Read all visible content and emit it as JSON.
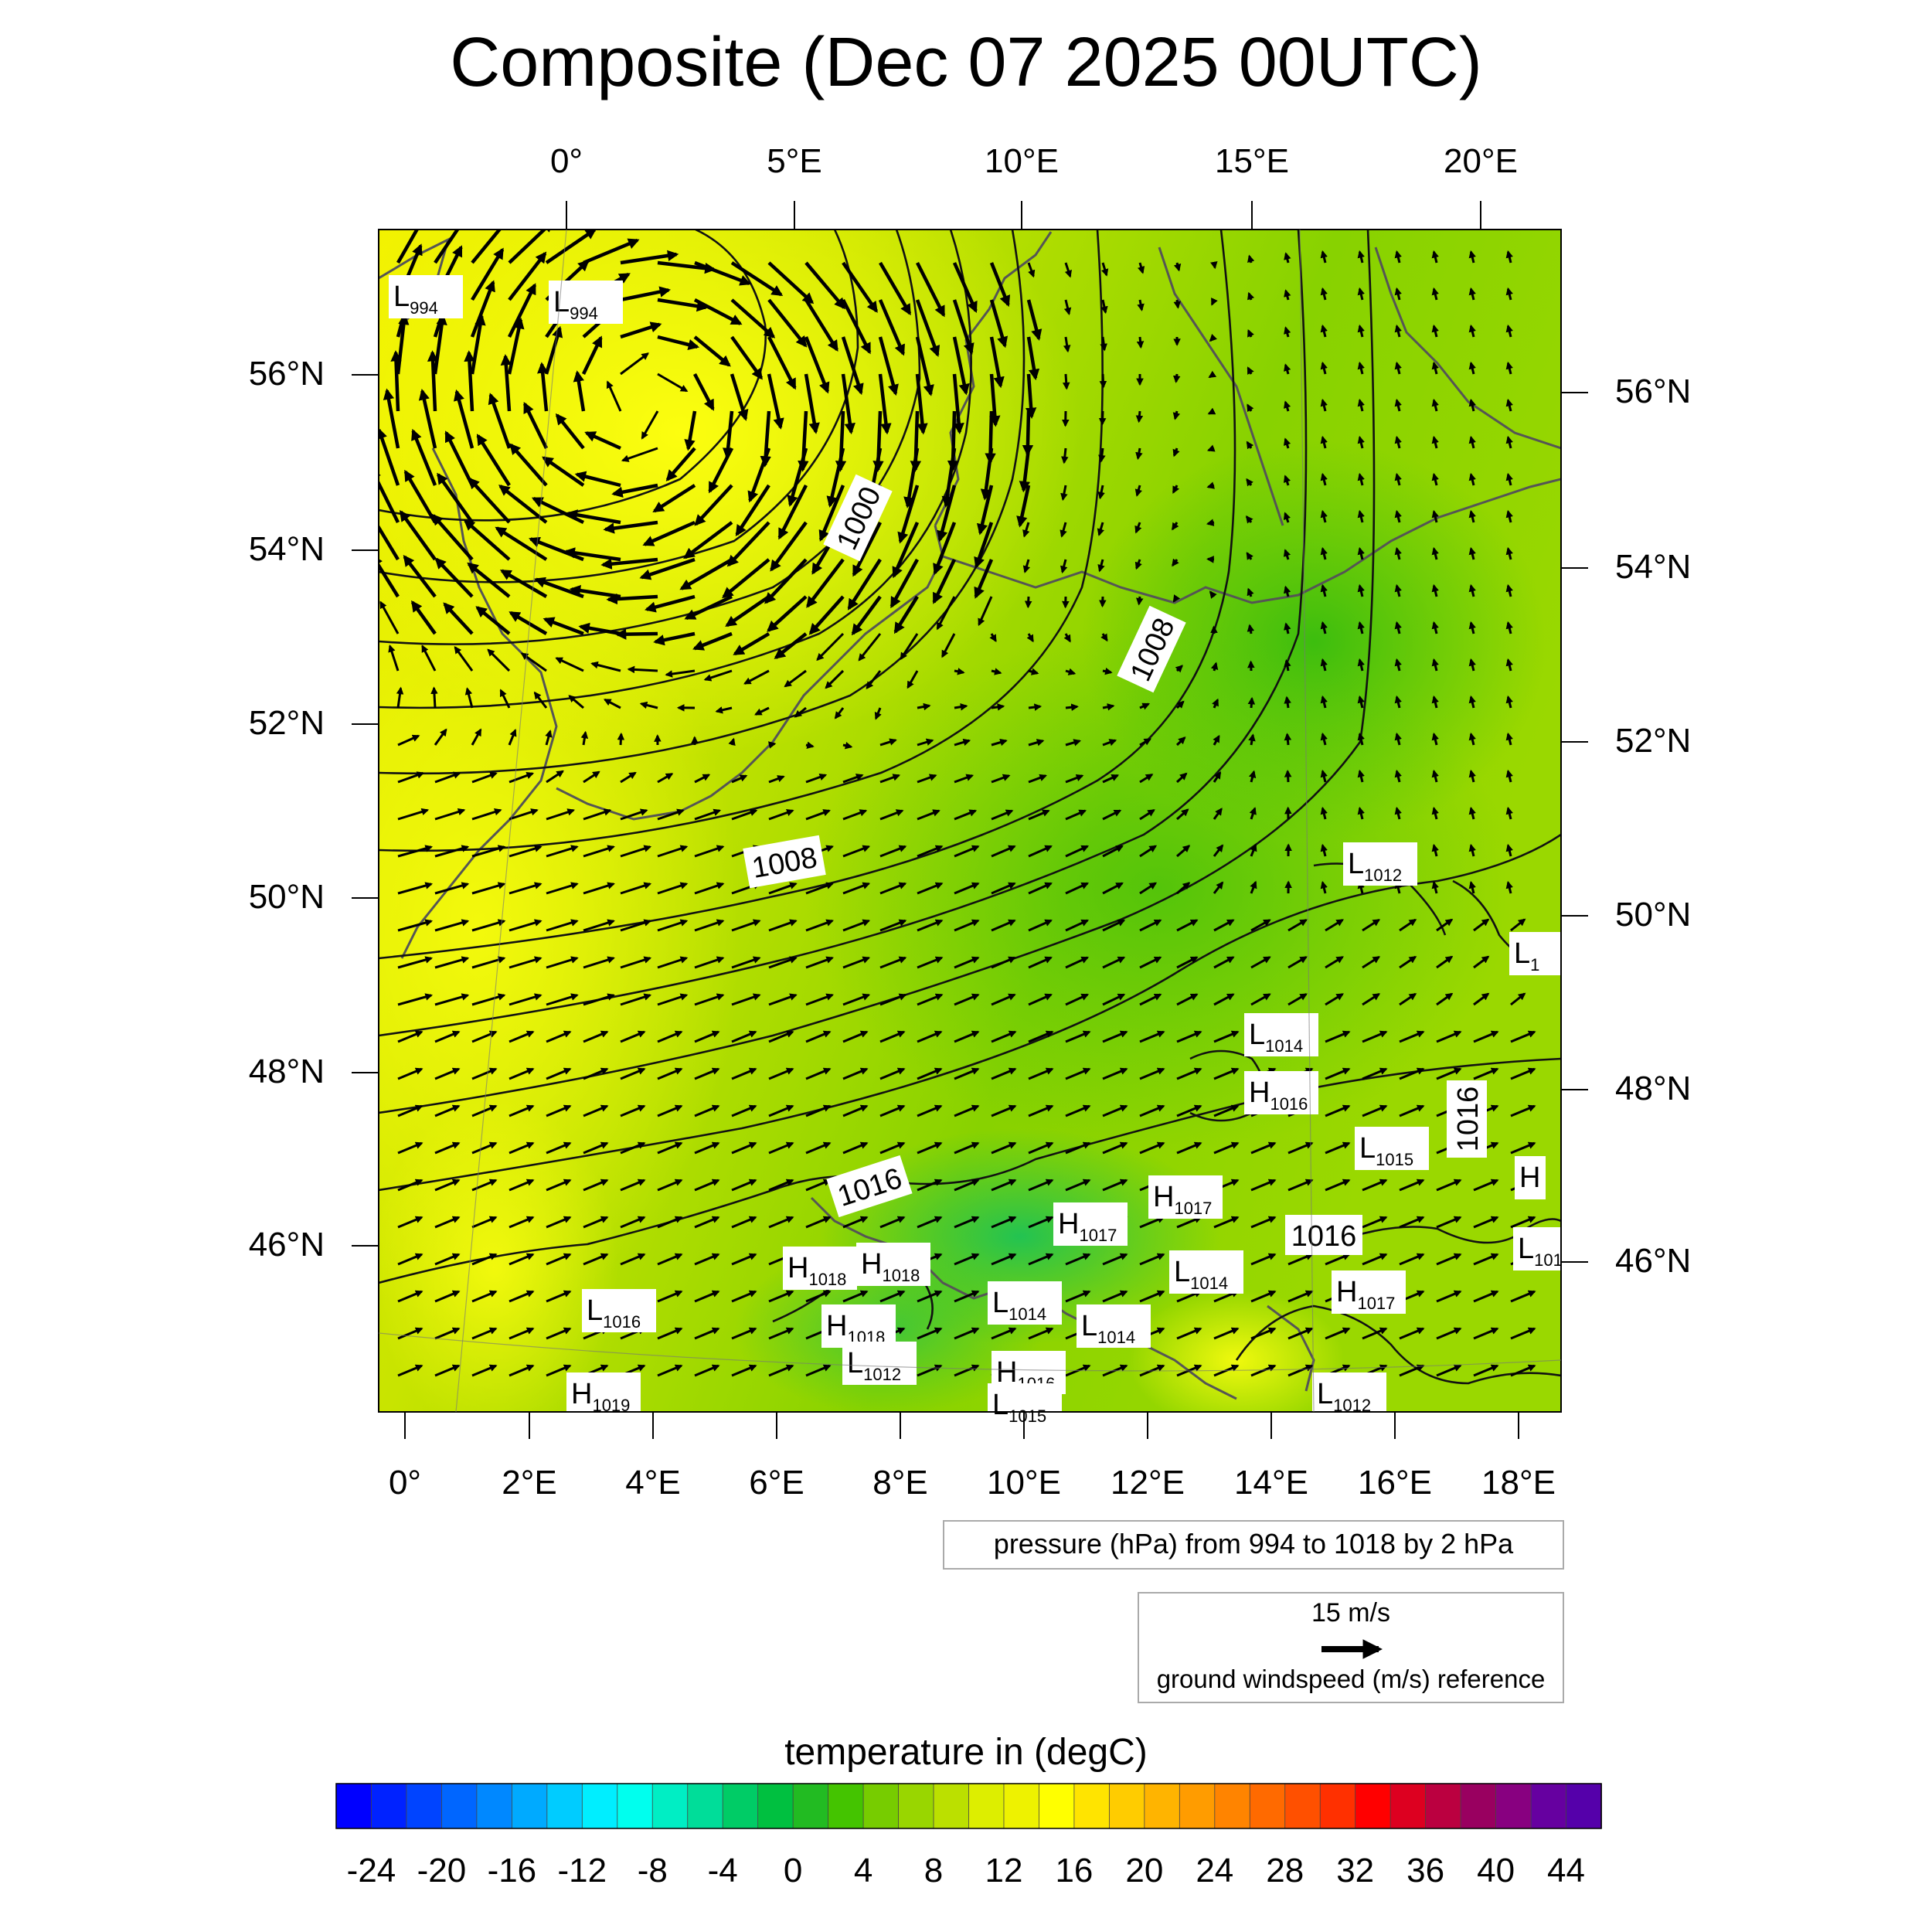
{
  "title": "Composite (Dec 07 2025 00UTC)",
  "top_lon_labels": [
    "0°",
    "5°E",
    "10°E",
    "15°E",
    "20°E"
  ],
  "bottom_lon_labels": [
    "0°",
    "2°E",
    "4°E",
    "6°E",
    "8°E",
    "10°E",
    "12°E",
    "14°E",
    "16°E",
    "18°E"
  ],
  "left_lat_labels": [
    "56°N",
    "54°N",
    "52°N",
    "50°N",
    "48°N",
    "46°N"
  ],
  "right_lat_labels": [
    "56°N",
    "54°N",
    "52°N",
    "50°N",
    "48°N",
    "46°N"
  ],
  "contour_info": "pressure (hPa) from 994 to 1018 by 2 hPa",
  "wind_reference": {
    "speed_label": "15 m/s",
    "description": "ground windspeed (m/s) reference"
  },
  "colorbar": {
    "title": "temperature in (degC)",
    "ticks": [
      "-24",
      "-20",
      "-16",
      "-12",
      "-8",
      "-4",
      "0",
      "4",
      "8",
      "12",
      "16",
      "20",
      "24",
      "28",
      "32",
      "36",
      "40",
      "44"
    ],
    "min": -26,
    "max": 46,
    "step": 2,
    "colors": [
      "#0000ff",
      "#0022ff",
      "#0044ff",
      "#0066ff",
      "#0088ff",
      "#00aaff",
      "#00ccff",
      "#00eeff",
      "#00ffee",
      "#00eec4",
      "#00dd99",
      "#00cc66",
      "#00c040",
      "#22bb22",
      "#44c400",
      "#77cc00",
      "#99d600",
      "#bbe000",
      "#ddee00",
      "#eef200",
      "#ffff00",
      "#ffe400",
      "#ffcc00",
      "#ffb400",
      "#ff9c00",
      "#ff8400",
      "#ff6a00",
      "#ff5000",
      "#ff3000",
      "#ff0000",
      "#dd0020",
      "#bb0040",
      "#990060",
      "#880080",
      "#6600a0",
      "#5500aa"
    ]
  },
  "isobar_labels": [
    "1000",
    "1008",
    "1008",
    "1016",
    "1016",
    "1016"
  ],
  "pressure_centers": [
    {
      "type": "L",
      "value": "994"
    },
    {
      "type": "L",
      "value": "994"
    },
    {
      "type": "L",
      "value": "1012"
    },
    {
      "type": "L",
      "value": "1"
    },
    {
      "type": "L",
      "value": "1014"
    },
    {
      "type": "H",
      "value": "1016"
    },
    {
      "type": "L",
      "value": "1015"
    },
    {
      "type": "H",
      "value": ""
    },
    {
      "type": "H",
      "value": "1017"
    },
    {
      "type": "H",
      "value": "1017"
    },
    {
      "type": "L",
      "value": "1014"
    },
    {
      "type": "H",
      "value": "1018"
    },
    {
      "type": "H",
      "value": "1018"
    },
    {
      "type": "L",
      "value": "1016"
    },
    {
      "type": "L",
      "value": "1014"
    },
    {
      "type": "L",
      "value": "1014"
    },
    {
      "type": "H",
      "value": "1018"
    },
    {
      "type": "L",
      "value": "1012"
    },
    {
      "type": "H",
      "value": "1016"
    },
    {
      "type": "L",
      "value": "1015"
    },
    {
      "type": "H",
      "value": "1019"
    },
    {
      "type": "L",
      "value": "1012"
    },
    {
      "type": "L",
      "value": "101"
    },
    {
      "type": "H",
      "value": "1017"
    }
  ]
}
